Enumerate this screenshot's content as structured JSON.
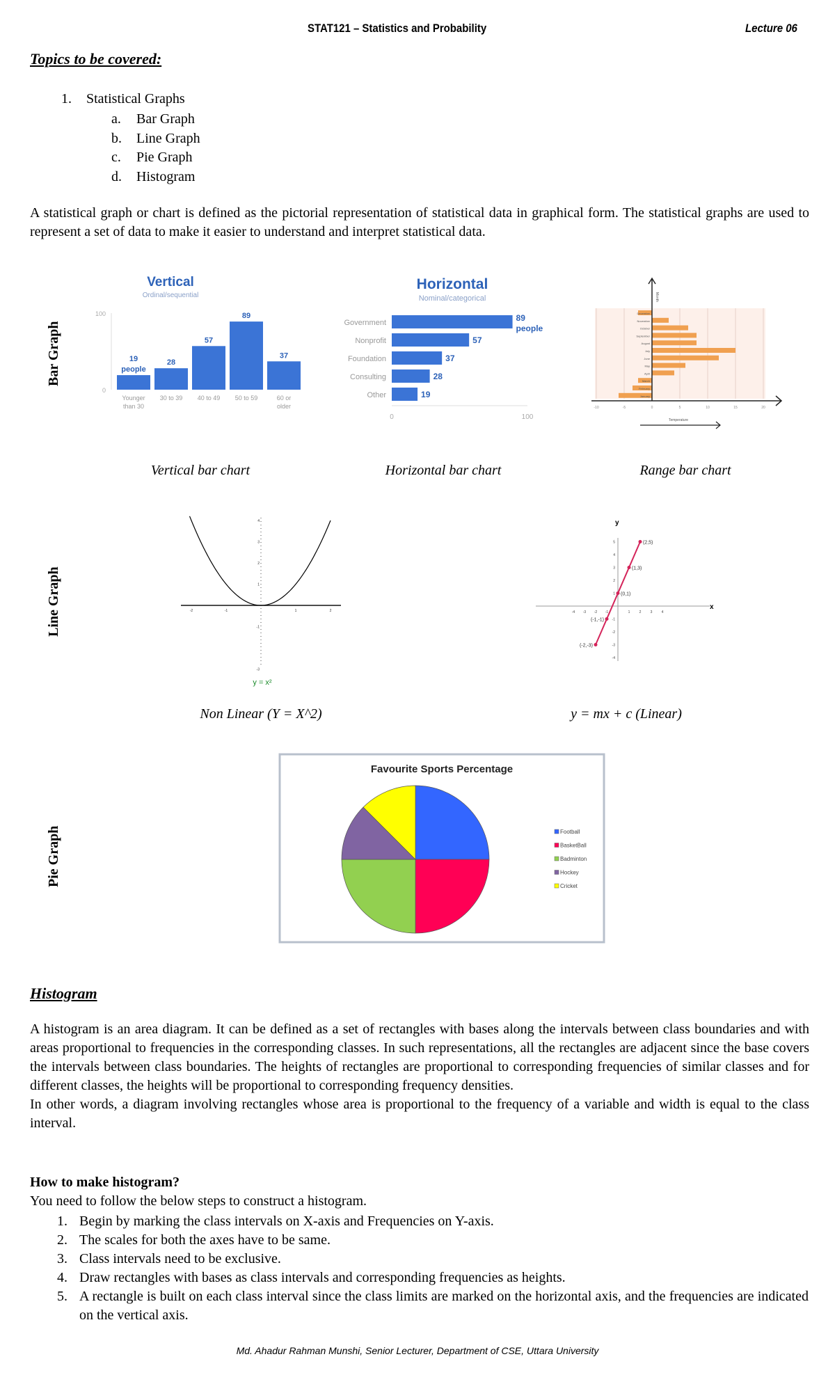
{
  "header": {
    "course": "STAT121 – Statistics and Probability",
    "lecture": "Lecture 06"
  },
  "topics": {
    "heading": "Topics to be covered:",
    "item_num": "1.",
    "item": "Statistical Graphs",
    "subitems": [
      {
        "m": "a.",
        "t": "Bar Graph"
      },
      {
        "m": "b.",
        "t": "Line Graph"
      },
      {
        "m": "c.",
        "t": "Pie Graph"
      },
      {
        "m": "d.",
        "t": "Histogram"
      }
    ]
  },
  "intro": "A statistical graph or chart is defined as the pictorial representation of statistical data in graphical form. The statistical graphs are used to represent a set of data to make it easier to understand and interpret statistical data.",
  "sections": {
    "bar": "Bar Graph",
    "line": "Line Graph",
    "pie": "Pie Graph"
  },
  "captions": {
    "vertical": "Vertical bar chart",
    "horizontal": "Horizontal bar chart",
    "range": "Range bar chart",
    "nonlinear": "Non Linear (Y  =  X^2)",
    "linear": "y  =  mx  +  c (Linear)"
  },
  "chart_data": [
    {
      "type": "bar",
      "orientation": "vertical",
      "title": "Vertical",
      "subtitle": "Ordinal/sequential",
      "categories": [
        "Younger than 30",
        "30 to 39",
        "40 to 49",
        "50 to 59",
        "60 or older"
      ],
      "values": [
        19,
        28,
        57,
        89,
        37
      ],
      "data_labels": [
        "19 people",
        "28",
        "57",
        "89",
        "37"
      ],
      "ylim": [
        0,
        100
      ],
      "yticks": [
        "0",
        "100"
      ],
      "color": "#3b74d6"
    },
    {
      "type": "bar",
      "orientation": "horizontal",
      "title": "Horizontal",
      "subtitle": "Nominal/categorical",
      "categories": [
        "Government",
        "Nonprofit",
        "Foundation",
        "Consulting",
        "Other"
      ],
      "values": [
        89,
        57,
        37,
        28,
        19
      ],
      "data_labels": [
        "89 people",
        "57",
        "37",
        "28",
        "19"
      ],
      "xlim": [
        0,
        100
      ],
      "xticks": [
        "0",
        "100"
      ],
      "color": "#3b74d6"
    },
    {
      "type": "bar",
      "orientation": "horizontal",
      "subtype": "range",
      "ylabel": "Month",
      "xlabel": "Temperature",
      "categories": [
        "December",
        "November",
        "October",
        "September",
        "August",
        "July",
        "June",
        "May",
        "April",
        "March",
        "February",
        "January"
      ],
      "values": [
        -2.5,
        3,
        6.5,
        8,
        8,
        15,
        12,
        6,
        4,
        -2.5,
        -3.5,
        -6
      ],
      "xlim": [
        -10,
        20
      ],
      "xticks": [
        -10,
        -5,
        0,
        5,
        10,
        15,
        20
      ],
      "grid": true,
      "color": "#f0a050",
      "background": "#fdf0ea"
    },
    {
      "type": "line",
      "function": "y = x^2",
      "label": "y = x²",
      "x": [
        -2,
        -1.5,
        -1,
        -0.5,
        0,
        0.5,
        1,
        1.5,
        2
      ],
      "y": [
        4,
        2.25,
        1,
        0.25,
        0,
        0.25,
        1,
        2.25,
        4
      ],
      "xlim": [
        -2,
        2
      ],
      "ylim": [
        -3,
        4
      ],
      "xticks": [
        -2,
        -1,
        1,
        2
      ],
      "yticks": [
        -3,
        -1,
        1,
        2,
        3,
        4
      ],
      "color": "#000000",
      "label_color": "#1a8a2a"
    },
    {
      "type": "line",
      "ylabel": "y",
      "xlabel": "x",
      "x": [
        -2,
        -1,
        0,
        1,
        2
      ],
      "y": [
        -3,
        -1,
        1,
        3,
        5
      ],
      "point_labels": [
        "(-2,-3)",
        "(-1,-1)",
        "(0,1)",
        "(1,3)",
        "(2,5)"
      ],
      "xlim": [
        -4,
        4
      ],
      "ylim": [
        -4,
        5
      ],
      "xticks": [
        -4,
        -3,
        -2,
        -1,
        1,
        2,
        3,
        4
      ],
      "yticks": [
        -4,
        -3,
        -2,
        -1,
        1,
        2,
        3,
        4,
        5
      ],
      "color": "#d4245a"
    },
    {
      "type": "pie",
      "title": "Favourite Sports Percentage",
      "labels": [
        "Football",
        "BasketBall",
        "Badminton",
        "Hockey",
        "Cricket"
      ],
      "values": [
        25,
        25,
        25,
        12.5,
        12.5
      ],
      "colors": [
        "#3366ff",
        "#ff0055",
        "#92d050",
        "#8064a2",
        "#ffff00"
      ],
      "legend": "right"
    }
  ],
  "histogram": {
    "heading": "Histogram",
    "p1": "A histogram is an area diagram. It can be defined as a set of rectangles with bases along the intervals between class boundaries and with areas proportional to frequencies in the corresponding classes. In such representations, all the rectangles are adjacent since the base covers the intervals between class boundaries. The heights of rectangles are proportional to corresponding frequencies of similar classes and for different classes, the heights will be proportional to corresponding frequency densities.",
    "p2": "In other words, a diagram involving rectangles whose area is proportional to the frequency of a variable and width is equal to the class interval.",
    "how_heading": "How to make histogram?",
    "how_intro": "You need to follow the below steps to construct a histogram.",
    "steps": [
      "Begin by marking the class intervals on X-axis and Frequencies on Y-axis.",
      "The scales for both the axes have to be same.",
      "Class intervals need to be exclusive.",
      "Draw rectangles with bases as class intervals and corresponding frequencies as heights.",
      "A rectangle is built on each class interval since the class limits are marked on the horizontal axis, and the frequencies are indicated on the vertical axis."
    ]
  },
  "footer": "Md. Ahadur Rahman Munshi, Senior Lecturer, Department of CSE, Uttara University"
}
